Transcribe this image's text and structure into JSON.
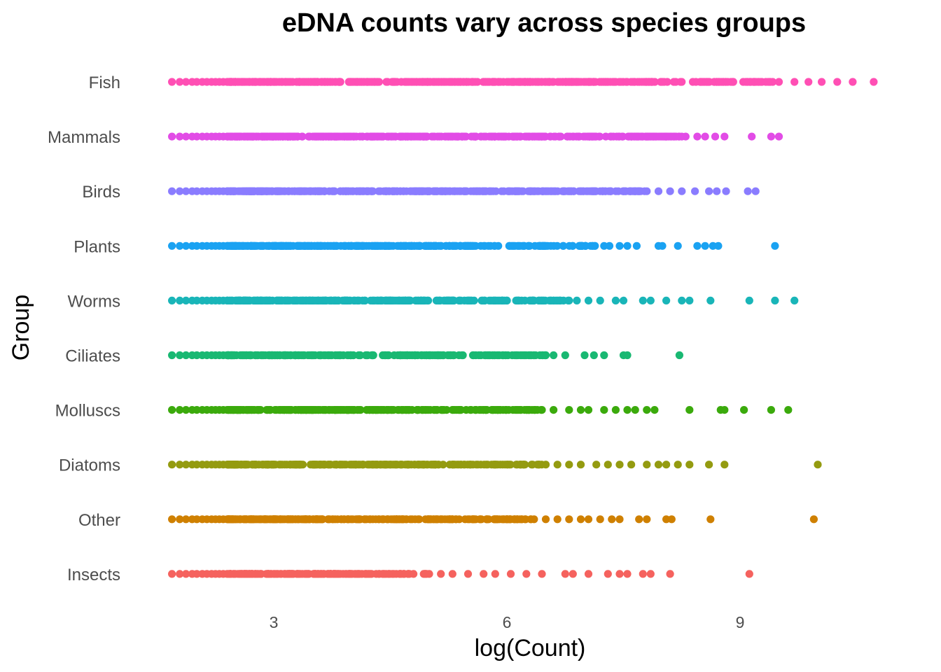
{
  "chart_data": {
    "type": "scatter",
    "title": "eDNA counts vary across species groups",
    "xlabel": "log(Count)",
    "ylabel": "Group",
    "xlim": [
      1.6,
      11.2
    ],
    "xticks": [
      3,
      6,
      9
    ],
    "grid": false,
    "legend": "none",
    "categories": [
      "Fish",
      "Mammals",
      "Birds",
      "Plants",
      "Worms",
      "Ciliates",
      "Molluscs",
      "Diatoms",
      "Other",
      "Insects"
    ],
    "series": [
      {
        "group": "Fish",
        "color": "#FF4FB4",
        "dense_range": [
          1.69,
          9.42
        ],
        "sparse": [
          9.5,
          9.7,
          9.88,
          10.05,
          10.25,
          10.45,
          10.72
        ]
      },
      {
        "group": "Mammals",
        "color": "#E24CE6",
        "dense_range": [
          1.69,
          8.25
        ],
        "sparse": [
          8.3,
          8.45,
          8.55,
          8.68,
          8.8,
          9.15,
          9.4,
          9.5
        ]
      },
      {
        "group": "Birds",
        "color": "#8A7CFF",
        "dense_range": [
          1.69,
          7.8
        ],
        "sparse": [
          7.95,
          8.1,
          8.25,
          8.42,
          8.6,
          8.7,
          8.82,
          9.1,
          9.2
        ]
      },
      {
        "group": "Plants",
        "color": "#1AA2F2",
        "dense_range": [
          1.69,
          7.25
        ],
        "sparse": [
          7.32,
          7.45,
          7.55,
          7.67,
          7.95,
          8.0,
          8.2,
          8.45,
          8.55,
          8.65,
          8.72,
          9.45
        ]
      },
      {
        "group": "Worms",
        "color": "#19B5B8",
        "dense_range": [
          1.69,
          6.8
        ],
        "sparse": [
          6.9,
          7.05,
          7.2,
          7.4,
          7.5,
          7.75,
          7.85,
          8.05,
          8.25,
          8.35,
          8.62,
          9.12,
          9.45,
          9.7
        ]
      },
      {
        "group": "Ciliates",
        "color": "#19B872",
        "dense_range": [
          1.69,
          6.5
        ],
        "sparse": [
          6.6,
          6.75,
          7.0,
          7.12,
          7.25,
          7.5,
          7.55,
          8.22
        ]
      },
      {
        "group": "Molluscs",
        "color": "#3BAA0C",
        "dense_range": [
          1.69,
          6.45
        ],
        "sparse": [
          6.6,
          6.8,
          6.95,
          7.05,
          7.25,
          7.4,
          7.55,
          7.65,
          7.8,
          7.9,
          8.35,
          8.75,
          8.8,
          9.05,
          9.4,
          9.62
        ]
      },
      {
        "group": "Diatoms",
        "color": "#949B10",
        "dense_range": [
          1.69,
          6.5
        ],
        "sparse": [
          6.65,
          6.8,
          6.95,
          7.15,
          7.3,
          7.45,
          7.6,
          7.8,
          7.95,
          8.05,
          8.2,
          8.35,
          8.6,
          8.8,
          10.0
        ]
      },
      {
        "group": "Other",
        "color": "#CF8000",
        "dense_range": [
          1.69,
          6.35
        ],
        "sparse": [
          6.5,
          6.65,
          6.8,
          6.95,
          7.05,
          7.2,
          7.35,
          7.45,
          7.7,
          7.8,
          8.05,
          8.12,
          8.62,
          9.95
        ]
      },
      {
        "group": "Insects",
        "color": "#F5625E",
        "dense_range": [
          1.69,
          5.0
        ],
        "sparse": [
          5.15,
          5.3,
          5.5,
          5.7,
          5.85,
          6.05,
          6.25,
          6.45,
          6.75,
          6.85,
          7.05,
          7.3,
          7.45,
          7.55,
          7.75,
          7.85,
          8.1,
          9.12
        ]
      }
    ]
  }
}
